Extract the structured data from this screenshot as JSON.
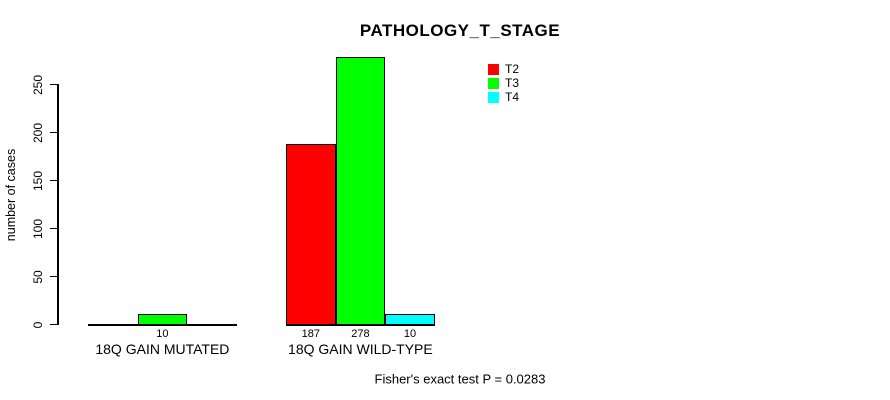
{
  "title": "PATHOLOGY_T_STAGE",
  "y_axis": {
    "label": "number of cases",
    "ticks": [
      0,
      50,
      100,
      150,
      200,
      250
    ]
  },
  "legend": {
    "items": [
      {
        "label": "T2",
        "color": "#ff0000"
      },
      {
        "label": "T3",
        "color": "#00ff00"
      },
      {
        "label": "T4",
        "color": "#00ffff"
      }
    ]
  },
  "footer": {
    "text": "Fisher's exact test P = 0.0283"
  },
  "chart_data": {
    "type": "bar",
    "grouped": true,
    "title": "PATHOLOGY_T_STAGE",
    "xlabel": "",
    "ylabel": "number of cases",
    "ylim": [
      0,
      260
    ],
    "grid": false,
    "legend_position": "top-right",
    "categories": [
      "18Q GAIN MUTATED",
      "18Q GAIN WILD-TYPE"
    ],
    "series": [
      {
        "name": "T2",
        "color": "#ff0000",
        "values": [
          0,
          187
        ]
      },
      {
        "name": "T3",
        "color": "#00ff00",
        "values": [
          10,
          278
        ]
      },
      {
        "name": "T4",
        "color": "#00ffff",
        "values": [
          0,
          10
        ]
      }
    ],
    "bar_value_labels_shown": true,
    "annotation": "Fisher's exact test P = 0.0283"
  }
}
